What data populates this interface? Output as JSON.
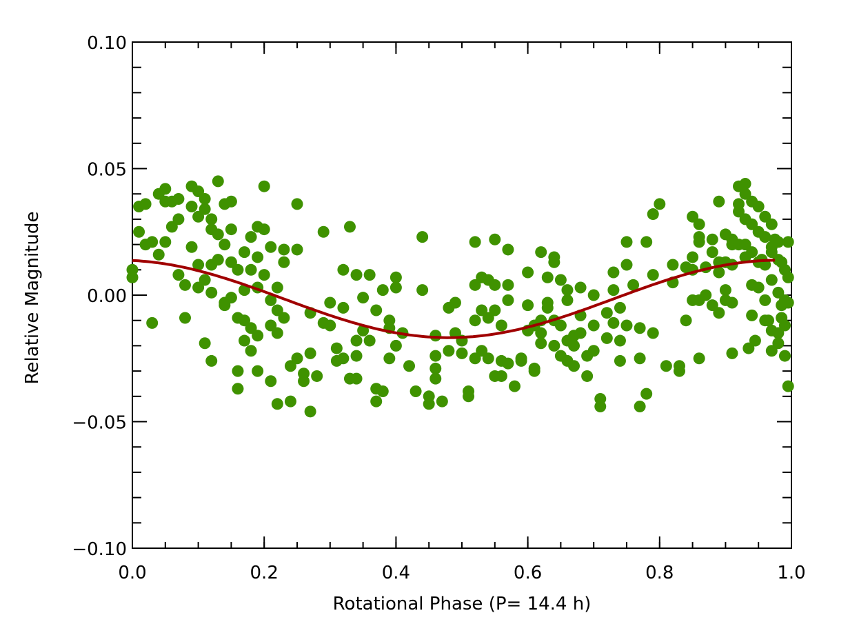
{
  "chart_data": {
    "type": "scatter",
    "title": "",
    "xlabel": "Rotational Phase (P= 14.4 h)",
    "ylabel": "Relative Magnitude",
    "xlim": [
      0.0,
      1.0
    ],
    "ylim": [
      -0.1,
      0.1
    ],
    "x_ticks": [
      "0.0",
      "0.2",
      "0.4",
      "0.6",
      "0.8",
      "1.0"
    ],
    "y_ticks": [
      "−0.10",
      "−0.05",
      "0.00",
      "0.05",
      "0.10"
    ],
    "x_tick_values": [
      0.0,
      0.2,
      0.4,
      0.6,
      0.8,
      1.0
    ],
    "y_tick_values": [
      -0.1,
      -0.05,
      0.0,
      0.05,
      0.1
    ],
    "x_minor_step": 0.05,
    "y_minor_step": 0.01,
    "grid": false,
    "marker_color": "#3f9200",
    "fit_color": "#a00000",
    "fit": {
      "name": "sinusoidal fit",
      "model": "mean + amplitude * cos(2*pi*(phase - phase0))",
      "mean": -0.0015,
      "amplitude": 0.0153,
      "phase0": -0.02,
      "x_range": [
        0.0,
        0.975
      ]
    },
    "series": [
      {
        "name": "observations",
        "points": [
          [
            0.0,
            0.007
          ],
          [
            0.0,
            0.01
          ],
          [
            0.01,
            0.025
          ],
          [
            0.01,
            0.035
          ],
          [
            0.02,
            0.02
          ],
          [
            0.02,
            0.036
          ],
          [
            0.03,
            0.021
          ],
          [
            0.03,
            -0.011
          ],
          [
            0.04,
            0.016
          ],
          [
            0.04,
            0.04
          ],
          [
            0.05,
            0.042
          ],
          [
            0.05,
            0.037
          ],
          [
            0.05,
            0.021
          ],
          [
            0.06,
            0.037
          ],
          [
            0.06,
            0.027
          ],
          [
            0.07,
            0.03
          ],
          [
            0.07,
            0.038
          ],
          [
            0.07,
            0.008
          ],
          [
            0.08,
            0.004
          ],
          [
            0.08,
            -0.009
          ],
          [
            0.09,
            0.043
          ],
          [
            0.09,
            0.035
          ],
          [
            0.09,
            0.019
          ],
          [
            0.1,
            0.041
          ],
          [
            0.1,
            0.031
          ],
          [
            0.1,
            0.012
          ],
          [
            0.1,
            0.003
          ],
          [
            0.11,
            0.034
          ],
          [
            0.11,
            0.038
          ],
          [
            0.11,
            0.006
          ],
          [
            0.11,
            -0.019
          ],
          [
            0.12,
            0.03
          ],
          [
            0.12,
            0.026
          ],
          [
            0.12,
            0.012
          ],
          [
            0.12,
            0.001
          ],
          [
            0.12,
            -0.026
          ],
          [
            0.13,
            0.045
          ],
          [
            0.13,
            0.024
          ],
          [
            0.13,
            0.014
          ],
          [
            0.14,
            0.036
          ],
          [
            0.14,
            0.02
          ],
          [
            0.14,
            -0.003
          ],
          [
            0.14,
            -0.004
          ],
          [
            0.15,
            0.037
          ],
          [
            0.15,
            0.026
          ],
          [
            0.15,
            0.013
          ],
          [
            0.15,
            -0.001
          ],
          [
            0.16,
            0.01
          ],
          [
            0.16,
            -0.009
          ],
          [
            0.16,
            -0.03
          ],
          [
            0.16,
            -0.037
          ],
          [
            0.17,
            0.017
          ],
          [
            0.17,
            0.002
          ],
          [
            0.17,
            -0.01
          ],
          [
            0.17,
            -0.018
          ],
          [
            0.18,
            0.023
          ],
          [
            0.18,
            0.01
          ],
          [
            0.18,
            -0.022
          ],
          [
            0.18,
            -0.013
          ],
          [
            0.19,
            0.027
          ],
          [
            0.19,
            0.015
          ],
          [
            0.19,
            0.003
          ],
          [
            0.19,
            -0.016
          ],
          [
            0.19,
            -0.03
          ],
          [
            0.2,
            0.043
          ],
          [
            0.2,
            0.026
          ],
          [
            0.2,
            0.008
          ],
          [
            0.21,
            0.019
          ],
          [
            0.21,
            -0.002
          ],
          [
            0.21,
            -0.012
          ],
          [
            0.21,
            -0.034
          ],
          [
            0.22,
            0.003
          ],
          [
            0.22,
            -0.006
          ],
          [
            0.22,
            -0.015
          ],
          [
            0.22,
            -0.043
          ],
          [
            0.23,
            0.018
          ],
          [
            0.23,
            0.013
          ],
          [
            0.23,
            -0.009
          ],
          [
            0.24,
            -0.028
          ],
          [
            0.24,
            -0.042
          ],
          [
            0.25,
            0.036
          ],
          [
            0.25,
            0.018
          ],
          [
            0.25,
            -0.025
          ],
          [
            0.26,
            -0.031
          ],
          [
            0.26,
            -0.034
          ],
          [
            0.27,
            -0.023
          ],
          [
            0.27,
            -0.046
          ],
          [
            0.27,
            -0.007
          ],
          [
            0.28,
            -0.032
          ],
          [
            0.29,
            0.025
          ],
          [
            0.29,
            -0.011
          ],
          [
            0.3,
            -0.003
          ],
          [
            0.3,
            -0.012
          ],
          [
            0.31,
            -0.021
          ],
          [
            0.31,
            -0.026
          ],
          [
            0.32,
            0.01
          ],
          [
            0.32,
            -0.005
          ],
          [
            0.32,
            -0.025
          ],
          [
            0.33,
            0.027
          ],
          [
            0.33,
            -0.033
          ],
          [
            0.34,
            0.008
          ],
          [
            0.34,
            -0.018
          ],
          [
            0.34,
            -0.024
          ],
          [
            0.34,
            -0.033
          ],
          [
            0.35,
            -0.001
          ],
          [
            0.35,
            -0.014
          ],
          [
            0.36,
            0.008
          ],
          [
            0.36,
            -0.018
          ],
          [
            0.37,
            -0.006
          ],
          [
            0.37,
            -0.037
          ],
          [
            0.37,
            -0.042
          ],
          [
            0.38,
            0.002
          ],
          [
            0.38,
            -0.038
          ],
          [
            0.39,
            -0.01
          ],
          [
            0.39,
            -0.013
          ],
          [
            0.39,
            -0.025
          ],
          [
            0.4,
            0.007
          ],
          [
            0.4,
            0.003
          ],
          [
            0.4,
            -0.02
          ],
          [
            0.41,
            -0.015
          ],
          [
            0.42,
            -0.028
          ],
          [
            0.43,
            -0.038
          ],
          [
            0.44,
            0.023
          ],
          [
            0.44,
            0.002
          ],
          [
            0.45,
            -0.04
          ],
          [
            0.45,
            -0.043
          ],
          [
            0.46,
            -0.016
          ],
          [
            0.46,
            -0.024
          ],
          [
            0.46,
            -0.029
          ],
          [
            0.46,
            -0.033
          ],
          [
            0.47,
            -0.042
          ],
          [
            0.48,
            -0.022
          ],
          [
            0.48,
            -0.005
          ],
          [
            0.49,
            -0.003
          ],
          [
            0.49,
            -0.015
          ],
          [
            0.5,
            -0.018
          ],
          [
            0.5,
            -0.023
          ],
          [
            0.51,
            -0.038
          ],
          [
            0.51,
            -0.04
          ],
          [
            0.52,
            0.021
          ],
          [
            0.52,
            0.004
          ],
          [
            0.52,
            -0.01
          ],
          [
            0.52,
            -0.025
          ],
          [
            0.53,
            0.007
          ],
          [
            0.53,
            -0.006
          ],
          [
            0.53,
            -0.022
          ],
          [
            0.54,
            0.006
          ],
          [
            0.54,
            -0.009
          ],
          [
            0.54,
            -0.025
          ],
          [
            0.55,
            0.022
          ],
          [
            0.55,
            0.004
          ],
          [
            0.55,
            -0.006
          ],
          [
            0.55,
            -0.032
          ],
          [
            0.56,
            -0.012
          ],
          [
            0.56,
            -0.026
          ],
          [
            0.56,
            -0.032
          ],
          [
            0.57,
            0.018
          ],
          [
            0.57,
            0.004
          ],
          [
            0.57,
            -0.002
          ],
          [
            0.57,
            -0.027
          ],
          [
            0.58,
            -0.036
          ],
          [
            0.59,
            -0.025
          ],
          [
            0.59,
            -0.026
          ],
          [
            0.6,
            0.009
          ],
          [
            0.6,
            -0.004
          ],
          [
            0.6,
            -0.014
          ],
          [
            0.61,
            -0.012
          ],
          [
            0.61,
            -0.029
          ],
          [
            0.61,
            -0.03
          ],
          [
            0.62,
            0.017
          ],
          [
            0.62,
            -0.01
          ],
          [
            0.62,
            -0.015
          ],
          [
            0.62,
            -0.019
          ],
          [
            0.63,
            0.007
          ],
          [
            0.63,
            -0.003
          ],
          [
            0.63,
            -0.005
          ],
          [
            0.64,
            0.015
          ],
          [
            0.64,
            0.013
          ],
          [
            0.64,
            -0.01
          ],
          [
            0.64,
            -0.02
          ],
          [
            0.65,
            0.006
          ],
          [
            0.65,
            -0.012
          ],
          [
            0.65,
            -0.024
          ],
          [
            0.66,
            0.002
          ],
          [
            0.66,
            -0.002
          ],
          [
            0.66,
            -0.018
          ],
          [
            0.66,
            -0.026
          ],
          [
            0.67,
            -0.016
          ],
          [
            0.67,
            -0.02
          ],
          [
            0.67,
            -0.028
          ],
          [
            0.68,
            0.003
          ],
          [
            0.68,
            -0.008
          ],
          [
            0.68,
            -0.015
          ],
          [
            0.69,
            -0.024
          ],
          [
            0.69,
            -0.032
          ],
          [
            0.7,
            0.0
          ],
          [
            0.7,
            -0.012
          ],
          [
            0.7,
            -0.022
          ],
          [
            0.71,
            -0.041
          ],
          [
            0.71,
            -0.044
          ],
          [
            0.72,
            -0.007
          ],
          [
            0.72,
            -0.017
          ],
          [
            0.73,
            0.009
          ],
          [
            0.73,
            0.002
          ],
          [
            0.73,
            -0.011
          ],
          [
            0.74,
            -0.005
          ],
          [
            0.74,
            -0.018
          ],
          [
            0.74,
            -0.026
          ],
          [
            0.75,
            0.021
          ],
          [
            0.75,
            0.012
          ],
          [
            0.75,
            -0.012
          ],
          [
            0.76,
            0.004
          ],
          [
            0.77,
            -0.025
          ],
          [
            0.77,
            -0.044
          ],
          [
            0.77,
            -0.013
          ],
          [
            0.78,
            0.021
          ],
          [
            0.78,
            -0.039
          ],
          [
            0.79,
            0.032
          ],
          [
            0.79,
            0.008
          ],
          [
            0.79,
            -0.015
          ],
          [
            0.8,
            0.036
          ],
          [
            0.81,
            -0.028
          ],
          [
            0.82,
            0.005
          ],
          [
            0.82,
            0.012
          ],
          [
            0.83,
            -0.028
          ],
          [
            0.83,
            -0.03
          ],
          [
            0.84,
            0.011
          ],
          [
            0.84,
            -0.01
          ],
          [
            0.85,
            0.015
          ],
          [
            0.85,
            0.031
          ],
          [
            0.85,
            0.01
          ],
          [
            0.85,
            -0.002
          ],
          [
            0.86,
            0.021
          ],
          [
            0.86,
            0.023
          ],
          [
            0.86,
            0.028
          ],
          [
            0.86,
            -0.002
          ],
          [
            0.86,
            -0.025
          ],
          [
            0.87,
            0.011
          ],
          [
            0.87,
            0.0
          ],
          [
            0.88,
            0.022
          ],
          [
            0.88,
            0.017
          ],
          [
            0.88,
            -0.004
          ],
          [
            0.89,
            0.037
          ],
          [
            0.89,
            0.013
          ],
          [
            0.89,
            0.009
          ],
          [
            0.89,
            -0.007
          ],
          [
            0.9,
            0.024
          ],
          [
            0.9,
            0.013
          ],
          [
            0.9,
            0.002
          ],
          [
            0.9,
            -0.002
          ],
          [
            0.91,
            0.02
          ],
          [
            0.91,
            0.022
          ],
          [
            0.91,
            0.012
          ],
          [
            0.91,
            -0.003
          ],
          [
            0.91,
            -0.023
          ],
          [
            0.92,
            0.036
          ],
          [
            0.92,
            0.043
          ],
          [
            0.92,
            0.033
          ],
          [
            0.92,
            0.02
          ],
          [
            0.93,
            0.044
          ],
          [
            0.93,
            0.04
          ],
          [
            0.93,
            0.03
          ],
          [
            0.93,
            0.02
          ],
          [
            0.93,
            0.015
          ],
          [
            0.94,
            0.037
          ],
          [
            0.94,
            0.028
          ],
          [
            0.94,
            0.017
          ],
          [
            0.94,
            0.004
          ],
          [
            0.94,
            -0.008
          ],
          [
            0.95,
            0.035
          ],
          [
            0.95,
            0.025
          ],
          [
            0.95,
            0.013
          ],
          [
            0.95,
            0.003
          ],
          [
            0.96,
            0.031
          ],
          [
            0.96,
            0.023
          ],
          [
            0.96,
            0.012
          ],
          [
            0.96,
            -0.002
          ],
          [
            0.96,
            -0.01
          ],
          [
            0.97,
            0.028
          ],
          [
            0.97,
            0.017
          ],
          [
            0.97,
            0.006
          ],
          [
            0.97,
            -0.014
          ],
          [
            0.97,
            -0.022
          ],
          [
            0.98,
            0.021
          ],
          [
            0.98,
            0.014
          ],
          [
            0.98,
            0.001
          ],
          [
            0.98,
            -0.015
          ],
          [
            0.98,
            -0.019
          ],
          [
            0.985,
            0.013
          ],
          [
            0.985,
            -0.004
          ],
          [
            0.985,
            -0.009
          ],
          [
            0.99,
            0.01
          ],
          [
            0.99,
            -0.002
          ],
          [
            0.99,
            -0.012
          ],
          [
            0.99,
            -0.024
          ],
          [
            0.995,
            0.021
          ],
          [
            0.995,
            0.007
          ],
          [
            0.995,
            -0.003
          ],
          [
            0.995,
            -0.036
          ],
          [
            0.975,
            0.022
          ],
          [
            0.97,
            0.019
          ],
          [
            0.965,
            -0.01
          ],
          [
            0.955,
            0.014
          ],
          [
            0.945,
            -0.018
          ],
          [
            0.935,
            -0.021
          ]
        ]
      }
    ]
  }
}
